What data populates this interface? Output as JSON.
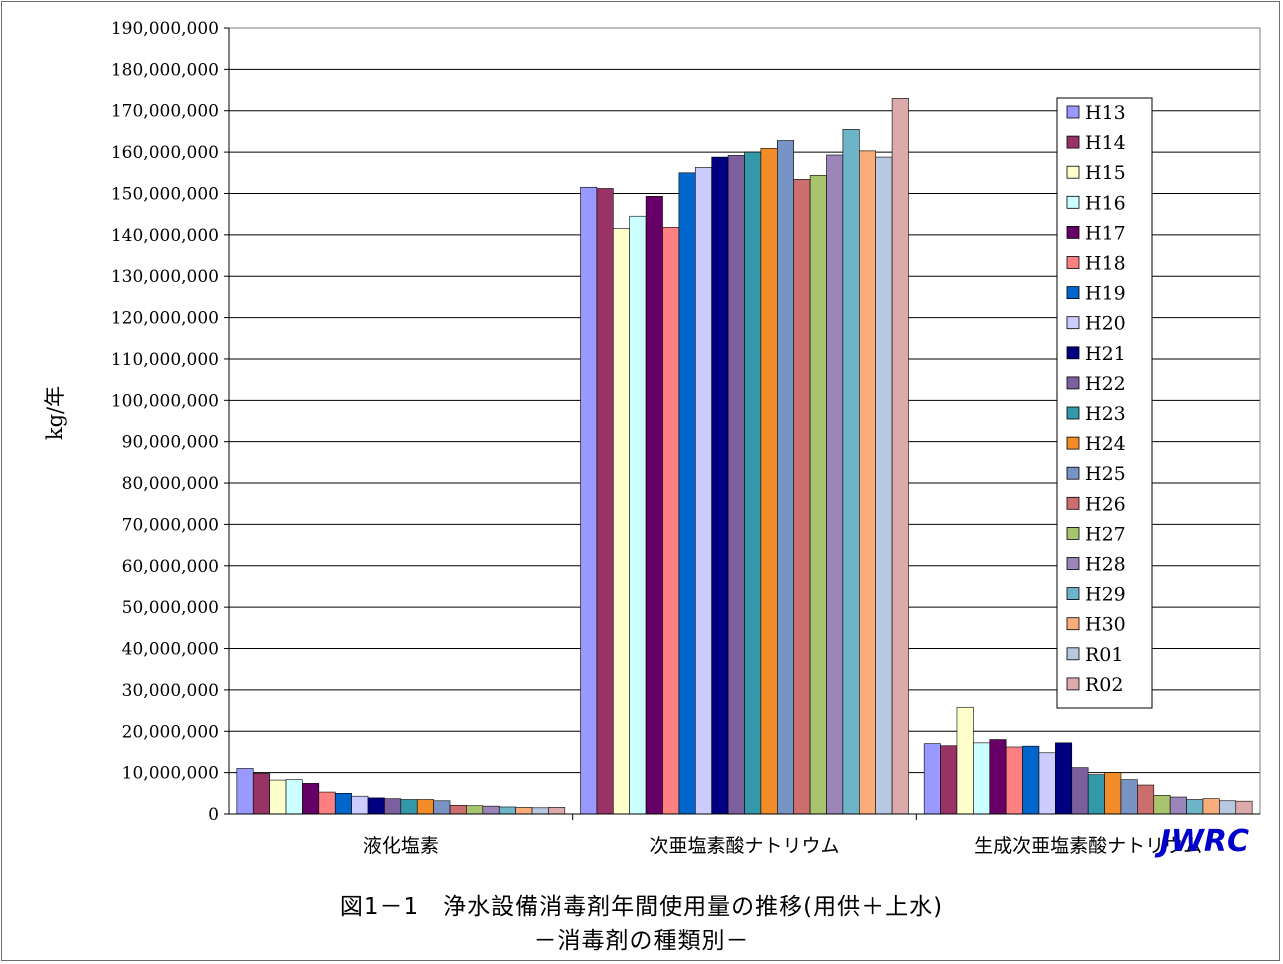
{
  "chart_data": {
    "type": "bar",
    "categories": [
      "液化塩素",
      "次亜塩素酸ナトリウム",
      "生成次亜塩素酸ナトリウム"
    ],
    "ylabel": "kg/年",
    "ylim": [
      0,
      190000000
    ],
    "yticks": [
      0,
      10000000,
      20000000,
      30000000,
      40000000,
      50000000,
      60000000,
      70000000,
      80000000,
      90000000,
      100000000,
      110000000,
      120000000,
      130000000,
      140000000,
      150000000,
      160000000,
      170000000,
      180000000,
      190000000
    ],
    "grid": true,
    "legend_position": "right",
    "series": [
      {
        "name": "H13",
        "color": "#9999ff",
        "values": [
          11000000,
          151500000,
          17000000
        ]
      },
      {
        "name": "H14",
        "color": "#993366",
        "values": [
          9800000,
          151200000,
          16500000
        ]
      },
      {
        "name": "H15",
        "color": "#ffffcc",
        "values": [
          8200000,
          141500000,
          25800000
        ]
      },
      {
        "name": "H16",
        "color": "#ccffff",
        "values": [
          8300000,
          144500000,
          17200000
        ]
      },
      {
        "name": "H17",
        "color": "#660066",
        "values": [
          7400000,
          149300000,
          18000000
        ]
      },
      {
        "name": "H18",
        "color": "#ff8080",
        "values": [
          5300000,
          141800000,
          16200000
        ]
      },
      {
        "name": "H19",
        "color": "#0066cc",
        "values": [
          5000000,
          155000000,
          16400000
        ]
      },
      {
        "name": "H20",
        "color": "#ccccff",
        "values": [
          4300000,
          156300000,
          14800000
        ]
      },
      {
        "name": "H21",
        "color": "#000080",
        "values": [
          3900000,
          158800000,
          17200000
        ]
      },
      {
        "name": "H22",
        "color": "#7b5f9e",
        "values": [
          3700000,
          159200000,
          11200000
        ]
      },
      {
        "name": "H23",
        "color": "#3399aa",
        "values": [
          3500000,
          160000000,
          9500000
        ]
      },
      {
        "name": "H24",
        "color": "#f28c28",
        "values": [
          3500000,
          160900000,
          10000000
        ]
      },
      {
        "name": "H25",
        "color": "#7894c4",
        "values": [
          3200000,
          162800000,
          8300000
        ]
      },
      {
        "name": "H26",
        "color": "#cc6e6e",
        "values": [
          2100000,
          153400000,
          7000000
        ]
      },
      {
        "name": "H27",
        "color": "#a9c46e",
        "values": [
          2000000,
          154400000,
          4500000
        ]
      },
      {
        "name": "H28",
        "color": "#9c85b8",
        "values": [
          1900000,
          159300000,
          4100000
        ]
      },
      {
        "name": "H29",
        "color": "#6eb4c8",
        "values": [
          1700000,
          165500000,
          3500000
        ]
      },
      {
        "name": "H30",
        "color": "#f9ad7a",
        "values": [
          1600000,
          160300000,
          3700000
        ]
      },
      {
        "name": "R01",
        "color": "#b8c8e0",
        "values": [
          1500000,
          158800000,
          3200000
        ]
      },
      {
        "name": "R02",
        "color": "#dcaaaa",
        "values": [
          1600000,
          173000000,
          3100000
        ]
      }
    ]
  },
  "caption": {
    "line1": "図1－1　浄水設備消毒剤年間使用量の推移(用供＋上水)",
    "line2": "－消毒剤の種類別－"
  },
  "brand": "JWRC"
}
